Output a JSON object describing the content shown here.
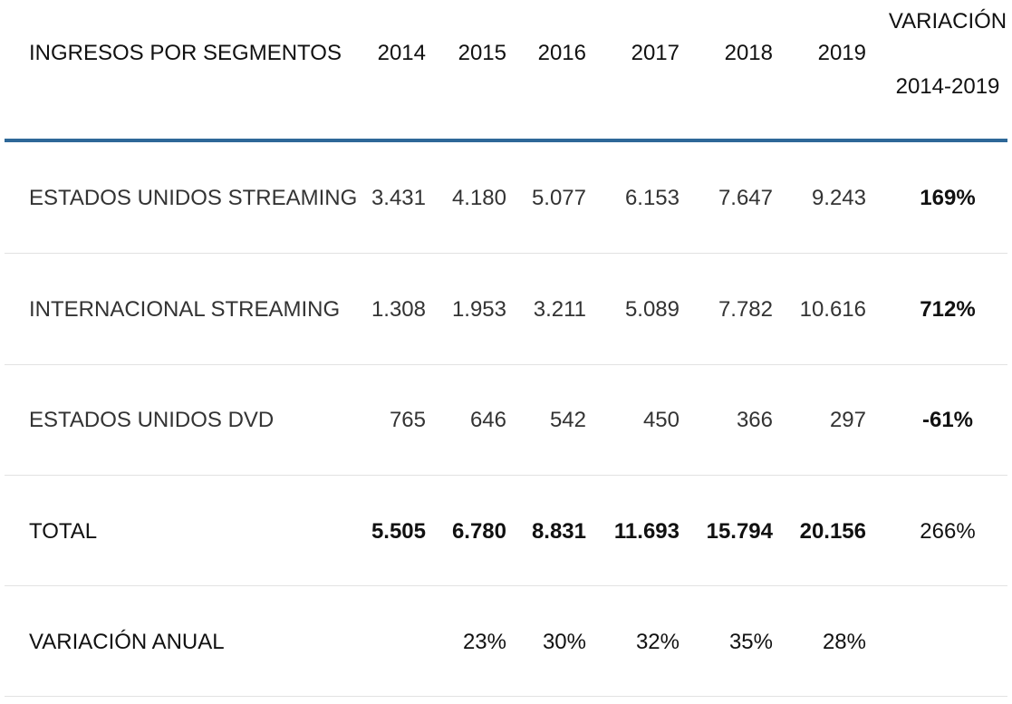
{
  "table": {
    "header": {
      "segment_label": "INGRESOS POR SEGMENTOS",
      "years": [
        "2014",
        "2015",
        "2016",
        "2017",
        "2018",
        "2019"
      ],
      "variation_line1": "VARIACIÓN",
      "variation_line2": "2014-2019"
    },
    "rows": [
      {
        "label": "ESTADOS UNIDOS STREAMING",
        "values": [
          "3.431",
          "4.180",
          "5.077",
          "6.153",
          "7.647",
          "9.243"
        ],
        "variation": "169%"
      },
      {
        "label": "INTERNACIONAL STREAMING",
        "values": [
          "1.308",
          "1.953",
          "3.211",
          "5.089",
          "7.782",
          "10.616"
        ],
        "variation": "712%"
      },
      {
        "label": "ESTADOS UNIDOS DVD",
        "values": [
          "765",
          "646",
          "542",
          "450",
          "366",
          "297"
        ],
        "variation": "-61%"
      },
      {
        "label": "TOTAL",
        "values": [
          "5.505",
          "6.780",
          "8.831",
          "11.693",
          "15.794",
          "20.156"
        ],
        "variation": "266%"
      },
      {
        "label": "VARIACIÓN ANUAL",
        "values": [
          "",
          "23%",
          "30%",
          "32%",
          "35%",
          "28%"
        ],
        "variation": ""
      }
    ],
    "colors": {
      "header_rule": "#2e6898",
      "row_rule": "#e2e2e2",
      "text": "#222222"
    }
  }
}
